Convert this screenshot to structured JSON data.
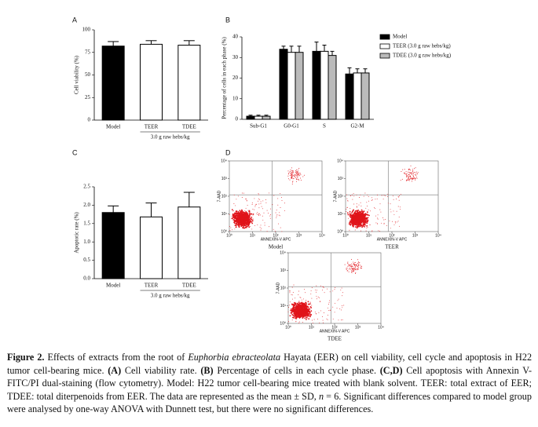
{
  "chart_data": [
    {
      "type": "bar",
      "panel": "A",
      "ylabel": "Cell viability (%)",
      "categories": [
        "Model",
        "TEER",
        "TDEE"
      ],
      "values": [
        82,
        84,
        83
      ],
      "errors": [
        5,
        4,
        5
      ],
      "colors": [
        "#000000",
        "#ffffff",
        "#ffffff"
      ],
      "group_label": "3.0 g raw hebs/kg",
      "ylim": [
        0,
        100
      ],
      "yticks": [
        0,
        25,
        50,
        75,
        100
      ]
    },
    {
      "type": "bar",
      "panel": "B",
      "ylabel": "Percentage of cells in each phase (%)",
      "categories": [
        "Sub-G1",
        "G0-G1",
        "S",
        "G2-M"
      ],
      "series": [
        {
          "name": "Model",
          "color": "#000000",
          "values": [
            1.5,
            34,
            33,
            22
          ],
          "errors": [
            0.5,
            1.5,
            4.5,
            3
          ]
        },
        {
          "name": "TEER (3.0 g raw hebs/kg)",
          "color": "#ffffff",
          "values": [
            1.5,
            32.5,
            33,
            22.5
          ],
          "errors": [
            0.5,
            3,
            3,
            2
          ]
        },
        {
          "name": "TDEE (3.0 g raw hebs/kg)",
          "color": "#bbbbbb",
          "values": [
            1.5,
            32.5,
            31,
            22.5
          ],
          "errors": [
            0.5,
            3,
            2,
            2
          ]
        }
      ],
      "ylim": [
        0,
        40
      ],
      "yticks": [
        0,
        10,
        20,
        30,
        40
      ],
      "legend": "top-right"
    },
    {
      "type": "bar",
      "panel": "C",
      "ylabel": "Apoptotic rate (%)",
      "categories": [
        "Model",
        "TEER",
        "TDEE"
      ],
      "values": [
        1.8,
        1.68,
        1.95
      ],
      "errors": [
        0.18,
        0.38,
        0.4
      ],
      "colors": [
        "#000000",
        "#ffffff",
        "#ffffff"
      ],
      "group_label": "3.0 g raw hebs/kg",
      "ylim": [
        0,
        2.5
      ],
      "yticks": [
        {
          "value": 0,
          "label": "0.0"
        },
        0.5,
        {
          "value": 1,
          "label": "1.0"
        },
        1.5,
        {
          "value": 2,
          "label": "2.0"
        },
        2.5
      ]
    },
    {
      "type": "scatter",
      "panel": "D",
      "title": "Model",
      "xlabel": "ANNEXIN-V APC",
      "ylabel": "7-AAD",
      "log": true,
      "xlim": [
        1,
        10000
      ],
      "ylim": [
        1,
        10000
      ],
      "xticks": [
        {
          "value": 1,
          "label": "10⁰"
        },
        {
          "value": 10,
          "label": "10¹"
        },
        {
          "value": 100,
          "label": "10²"
        },
        {
          "value": 1000,
          "label": "10³"
        },
        {
          "value": 10000,
          "label": "10⁴"
        }
      ],
      "yticks": [
        {
          "value": 1,
          "label": "10⁰"
        },
        {
          "value": 10,
          "label": "10¹"
        },
        {
          "value": 100,
          "label": "10²"
        },
        {
          "value": 1000,
          "label": "10³"
        },
        {
          "value": 10000,
          "label": "10⁴"
        }
      ]
    },
    {
      "type": "scatter",
      "title": "TEER",
      "xlabel": "ANNEXIN-V APC",
      "ylabel": "7-AAD",
      "log": true,
      "xlim": [
        1,
        10000
      ],
      "ylim": [
        1,
        10000
      ],
      "xticks": [
        {
          "value": 1,
          "label": "10⁰"
        },
        {
          "value": 10,
          "label": "10¹"
        },
        {
          "value": 100,
          "label": "10²"
        },
        {
          "value": 1000,
          "label": "10³"
        },
        {
          "value": 10000,
          "label": "10⁴"
        }
      ],
      "yticks": [
        {
          "value": 1,
          "label": "10⁰"
        },
        {
          "value": 10,
          "label": "10¹"
        },
        {
          "value": 100,
          "label": "10²"
        },
        {
          "value": 1000,
          "label": "10³"
        },
        {
          "value": 10000,
          "label": "10⁴"
        }
      ]
    },
    {
      "type": "scatter",
      "title": "TDEE",
      "xlabel": "ANNEXIN-V APC",
      "ylabel": "7-AAD",
      "log": true,
      "xlim": [
        1,
        10000
      ],
      "ylim": [
        1,
        10000
      ],
      "xticks": [
        {
          "value": 1,
          "label": "10⁰"
        },
        {
          "value": 10,
          "label": "10¹"
        },
        {
          "value": 100,
          "label": "10²"
        },
        {
          "value": 1000,
          "label": "10³"
        },
        {
          "value": 10000,
          "label": "10⁴"
        }
      ],
      "yticks": [
        {
          "value": 1,
          "label": "10⁰"
        },
        {
          "value": 10,
          "label": "10¹"
        },
        {
          "value": 100,
          "label": "10²"
        },
        {
          "value": 1000,
          "label": "10³"
        },
        {
          "value": 10000,
          "label": "10⁴"
        }
      ]
    }
  ],
  "caption": [
    "Figure 2.",
    "Effects of extracts from the root of",
    "Euphorbia ebracteolata",
    "Hayata (EER) on cell viability, cell cycle and apoptosis in H22 tumor cell-bearing mice.",
    "(A)",
    "Cell viability rate.",
    "(B)",
    "Percentage of cells in each cycle phase.",
    "(C,D)",
    "Cell apoptosis with Annexin V-FITC/PI dual-staining (flow cytometry). Model: H22 tumor cell-bearing mice treated with blank solvent. TEER: total extract of EER; TDEE: total diterpenoids from EER. The data are represented as the mean ± SD,",
    "n",
    " = 6. Significant differences compared to model group were analysed by one-way ANOVA with Dunnett test, but there were no significant differences."
  ]
}
